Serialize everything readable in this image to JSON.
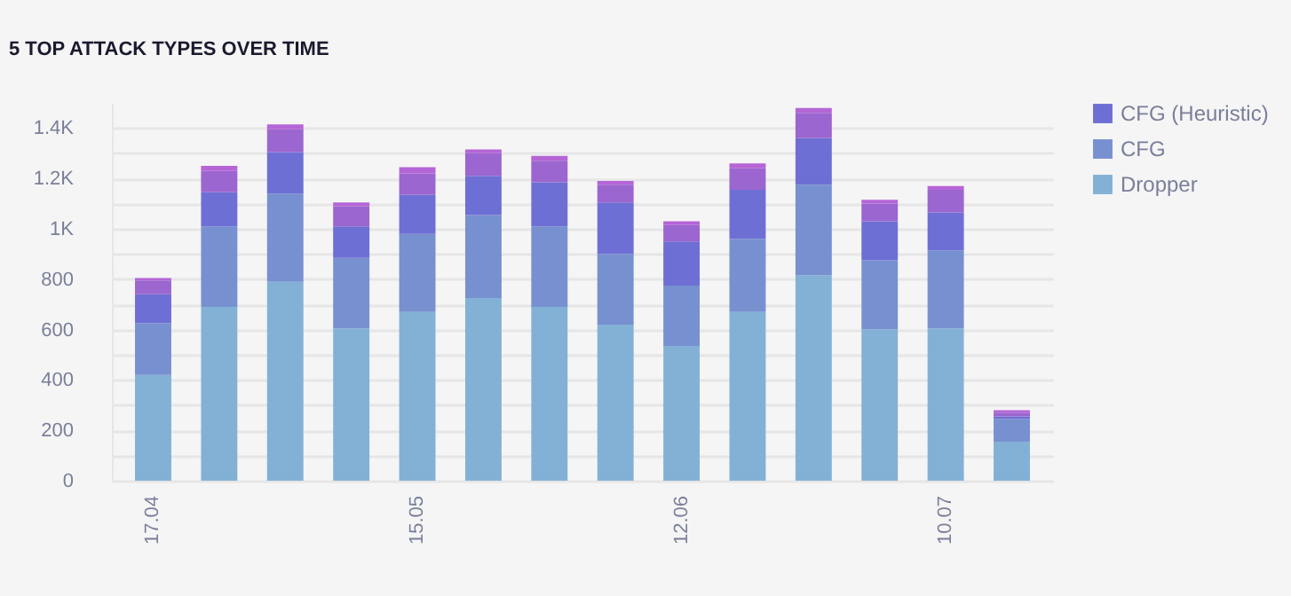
{
  "chart_data": {
    "type": "bar",
    "title": "5 TOP ATTACK TYPES OVER TIME",
    "categories": [
      "17.04",
      null,
      null,
      null,
      "15.05",
      null,
      null,
      null,
      "12.06",
      null,
      null,
      null,
      "10.07",
      null
    ],
    "stacked": true,
    "series": [
      {
        "name": "Dropper",
        "color": "#83b1d6",
        "values": [
          420,
          690,
          790,
          605,
          670,
          725,
          690,
          620,
          535,
          670,
          815,
          600,
          605,
          155
        ]
      },
      {
        "name": "CFG",
        "color": "#7790d0",
        "values": [
          205,
          320,
          350,
          280,
          310,
          330,
          320,
          280,
          240,
          290,
          360,
          275,
          310,
          90
        ]
      },
      {
        "name": "CFG (Heuristic)",
        "color": "#6e6fd4",
        "values": [
          115,
          135,
          165,
          125,
          155,
          155,
          175,
          205,
          175,
          195,
          185,
          155,
          150,
          10
        ]
      },
      {
        "color": "#9b66cf",
        "values": [
          55,
          85,
          90,
          80,
          85,
          90,
          85,
          70,
          65,
          85,
          100,
          70,
          90,
          15
        ]
      },
      {
        "color": "#b565d6",
        "values": [
          10,
          20,
          20,
          15,
          25,
          15,
          20,
          15,
          15,
          20,
          20,
          15,
          15,
          10
        ]
      }
    ],
    "ylim": [
      0,
      1500
    ],
    "yticks": [
      0,
      {
        "value": 100,
        "label": null
      },
      200,
      {
        "value": 300,
        "label": null
      },
      400,
      {
        "value": 500,
        "label": null
      },
      600,
      {
        "value": 700,
        "label": null
      },
      800,
      {
        "value": 900,
        "label": null
      },
      {
        "value": 1000,
        "label": "1K"
      },
      {
        "value": 1100,
        "label": null
      },
      {
        "value": 1200,
        "label": "1.2K"
      },
      {
        "value": 1300,
        "label": null
      },
      {
        "value": 1400,
        "label": "1.4K"
      }
    ],
    "grid": "y",
    "legend": "top right"
  }
}
